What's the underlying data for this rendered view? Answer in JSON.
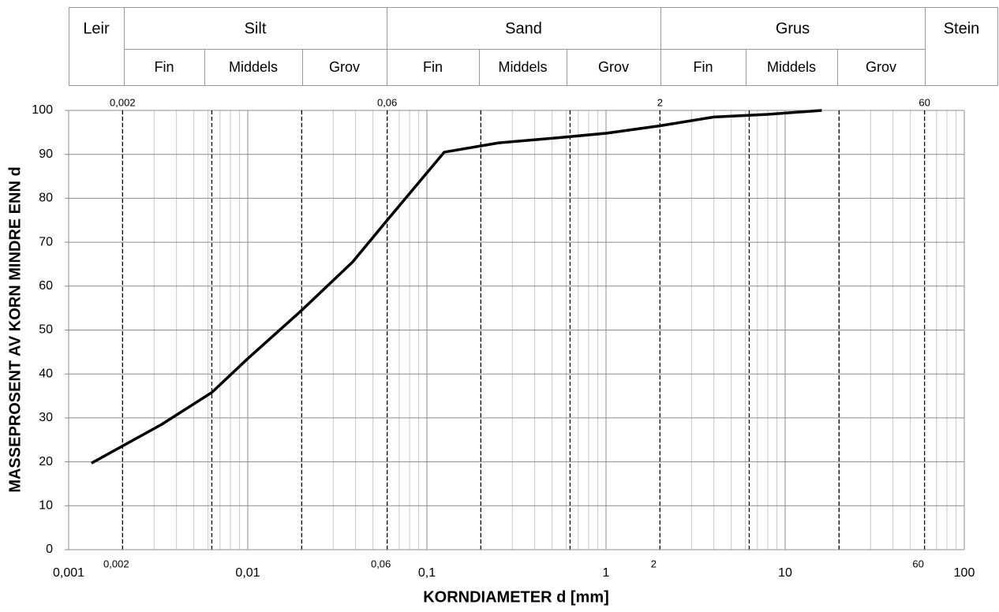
{
  "header": {
    "columns": [
      {
        "name": "Leir"
      },
      {
        "name": "Silt",
        "subs": [
          "Fin",
          "Middels",
          "Grov"
        ]
      },
      {
        "name": "Sand",
        "subs": [
          "Fin",
          "Middels",
          "Grov"
        ]
      },
      {
        "name": "Grus",
        "subs": [
          "Fin",
          "Middels",
          "Grov"
        ]
      },
      {
        "name": "Stein"
      }
    ]
  },
  "chart_data": {
    "type": "line",
    "x_label": "KORNDIAMETER d [mm]",
    "y_label": "MASSEPROSENT AV KORN MINDRE ENN d",
    "x_log": true,
    "xlim": [
      0.001,
      100
    ],
    "ylim": [
      0,
      100
    ],
    "xticks": [
      {
        "value": 0.001,
        "label": "0,001"
      },
      {
        "value": 0.01,
        "label": "0,01"
      },
      {
        "value": 0.1,
        "label": "0,1"
      },
      1,
      10,
      100
    ],
    "yticks": [
      0,
      10,
      20,
      30,
      40,
      50,
      60,
      70,
      80,
      90,
      100
    ],
    "boundary_ticks": [
      {
        "value": 0.002,
        "label": "0,002"
      },
      {
        "value": 0.06,
        "label": "0,06"
      },
      2,
      60
    ],
    "dashed_lines": [
      0.002,
      0.0063,
      0.02,
      0.06,
      0.2,
      0.63,
      2,
      6.3,
      20,
      60
    ],
    "grid": true,
    "minor_grid": true,
    "series": [
      {
        "color": "#000000",
        "x": [
          0.00134,
          0.0033,
          0.0063,
          0.01,
          0.02,
          0.0385,
          0.06,
          0.125,
          0.25,
          0.55,
          1,
          2,
          4,
          8,
          16
        ],
        "values": [
          19.7,
          28.5,
          35.8,
          43.5,
          54.5,
          65.5,
          75,
          90.5,
          92.6,
          93.8,
          94.8,
          96.5,
          98.5,
          99.1,
          100
        ]
      }
    ]
  }
}
